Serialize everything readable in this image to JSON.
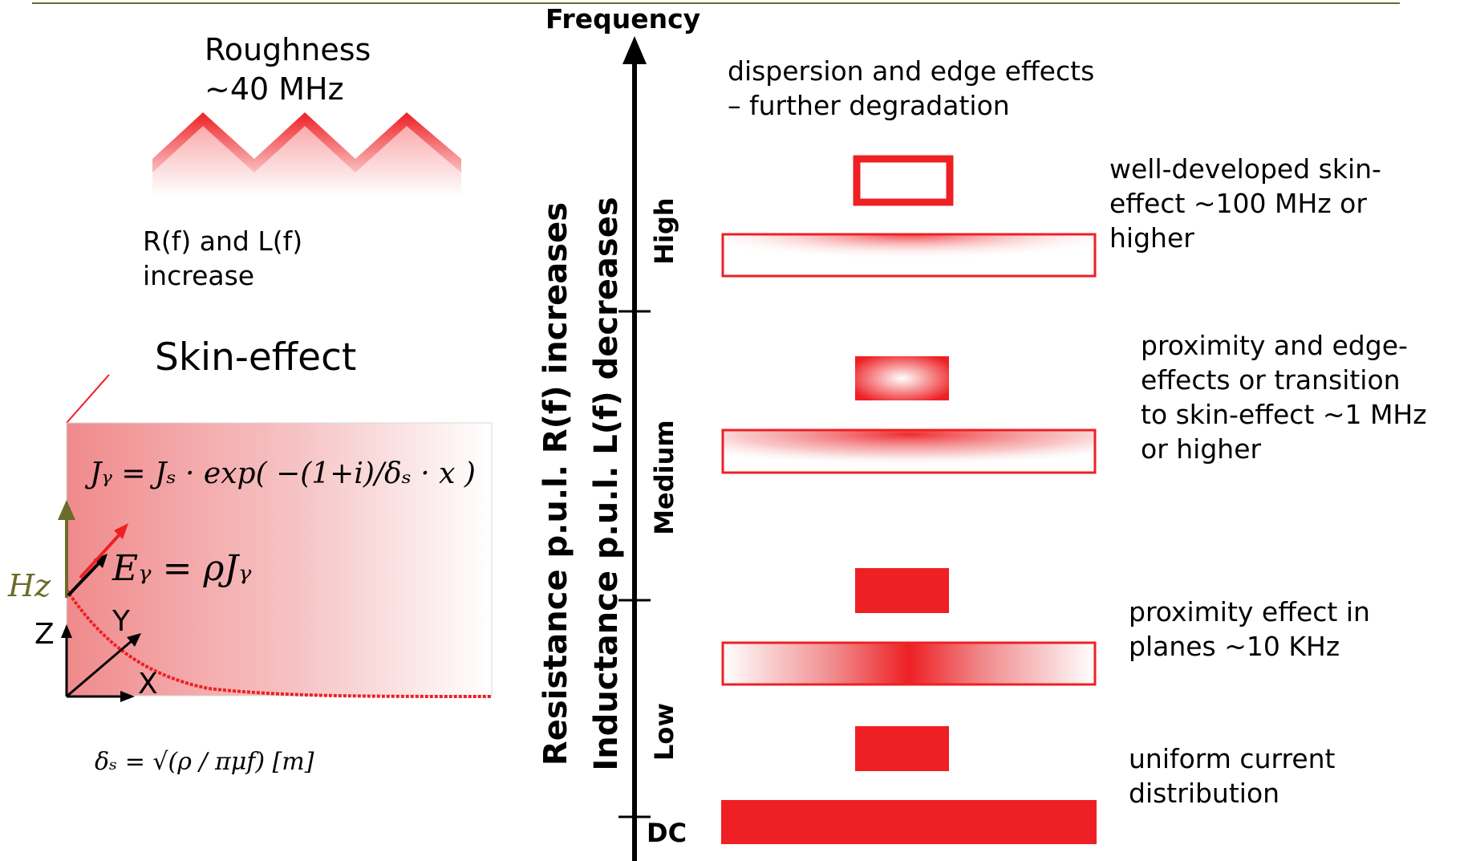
{
  "left": {
    "roughness_title": "Roughness",
    "roughness_freq": "~40 MHz",
    "rl_line1": "R(f) and L(f)",
    "rl_line2": "increase",
    "skin_title": "Skin-effect",
    "eq_jy": "Jᵧ = Jₛ · exp( −(1+i)/δₛ · x )",
    "eq_ey": "Eᵧ = ρJᵧ",
    "eq_delta": "δₛ = √(ρ / πμf)  [m]",
    "axis_hz": "Hz",
    "axis_z": "Z",
    "axis_y": "Y",
    "axis_x": "X"
  },
  "center": {
    "frequency_label": "Frequency",
    "resistance_label": "Resistance p.u.l. R(f) increases",
    "inductance_label": "Inductance p.u.l. L(f) decreases",
    "band_high": "High",
    "band_medium": "Medium",
    "band_low": "Low",
    "band_dc": "DC"
  },
  "right": {
    "dispersion_line1": "dispersion and edge effects",
    "dispersion_line2": "– further degradation",
    "well_line1": "well-developed skin-",
    "well_line2": "effect ~100 MHz or",
    "well_line3": "higher",
    "prox_edge_line1": "proximity and edge-",
    "prox_edge_line2": "effects or transition",
    "prox_edge_line3": "to skin-effect ~1 MHz",
    "prox_edge_line4": "or higher",
    "prox_planes_line1": "proximity effect in",
    "prox_planes_line2": "planes ~10 KHz",
    "uniform_line1": "uniform current",
    "uniform_line2": "distribution"
  },
  "colors": {
    "red": "#ee2024",
    "olive": "#6b6b2a",
    "top_rule": "#6b6b2a"
  }
}
